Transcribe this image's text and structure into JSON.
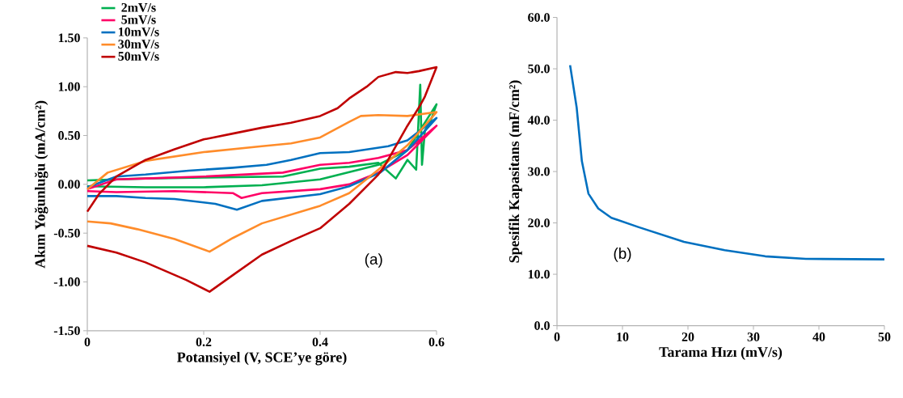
{
  "chart_data": [
    {
      "type": "line",
      "xlabel": "Potansiyel (V, SCE’ye göre)",
      "ylabel": "Akım Yoğunluğu (mA/cm²)",
      "xlim": [
        0,
        0.6
      ],
      "ylim": [
        -1.5,
        1.5
      ],
      "xticks": [
        0,
        0.2,
        0.4,
        0.6
      ],
      "yticks": [
        {
          "value": -1.5,
          "label": "-1.50"
        },
        {
          "value": -1.0,
          "label": "-1.00"
        },
        {
          "value": -0.5,
          "label": "-0.50"
        },
        {
          "value": 0,
          "label": "0.00"
        },
        {
          "value": 0.5,
          "label": "0.50"
        },
        {
          "value": 1.0,
          "label": "1.00"
        },
        {
          "value": 1.5,
          "label": "1.50"
        }
      ],
      "legend": "top left",
      "annotations": [
        "(a)"
      ],
      "series": [
        {
          "name": "2mV/s",
          "color": "#00b050",
          "x": [
            0,
            0.05,
            0.1,
            0.2,
            0.336,
            0.4,
            0.45,
            0.5,
            0.53,
            0.55,
            0.565,
            0.572,
            0.575,
            0.58,
            0.59,
            0.6,
            0.55,
            0.5,
            0.4,
            0.3,
            0.2,
            0.1,
            0
          ],
          "values": [
            0.04,
            0.05,
            0.06,
            0.07,
            0.08,
            0.16,
            0.18,
            0.22,
            0.06,
            0.25,
            0.15,
            1.02,
            0.2,
            0.55,
            0.65,
            0.82,
            0.35,
            0.2,
            0.05,
            -0.01,
            -0.03,
            -0.03,
            -0.02
          ]
        },
        {
          "name": "5mV/s",
          "color": "#ff0066",
          "x": [
            0,
            0.05,
            0.1,
            0.2,
            0.336,
            0.4,
            0.45,
            0.5,
            0.55,
            0.6,
            0.55,
            0.5,
            0.45,
            0.4,
            0.3,
            0.265,
            0.25,
            0.15,
            0.05,
            0
          ],
          "values": [
            -0.05,
            0.05,
            0.06,
            0.08,
            0.12,
            0.2,
            0.22,
            0.27,
            0.35,
            0.6,
            0.3,
            0.12,
            0.0,
            -0.05,
            -0.09,
            -0.14,
            -0.09,
            -0.07,
            -0.08,
            -0.07
          ]
        },
        {
          "name": "10mV/s",
          "color": "#0070c0",
          "x": [
            0,
            0.05,
            0.1,
            0.174,
            0.25,
            0.308,
            0.35,
            0.4,
            0.45,
            0.517,
            0.55,
            0.6,
            0.55,
            0.503,
            0.45,
            0.4,
            0.3,
            0.257,
            0.22,
            0.15,
            0.1,
            0.05,
            0
          ],
          "values": [
            -0.03,
            0.08,
            0.1,
            0.14,
            0.17,
            0.2,
            0.25,
            0.32,
            0.33,
            0.39,
            0.45,
            0.68,
            0.35,
            0.12,
            -0.02,
            -0.1,
            -0.17,
            -0.26,
            -0.2,
            -0.15,
            -0.14,
            -0.12,
            -0.12
          ]
        },
        {
          "name": "30mV/s",
          "color": "#ff8c2a",
          "x": [
            0,
            0.035,
            0.1,
            0.2,
            0.3,
            0.35,
            0.4,
            0.45,
            0.47,
            0.5,
            0.55,
            0.6,
            0.55,
            0.5,
            0.45,
            0.4,
            0.3,
            0.25,
            0.21,
            0.15,
            0.086,
            0.04,
            0
          ],
          "values": [
            -0.05,
            0.12,
            0.24,
            0.33,
            0.39,
            0.42,
            0.48,
            0.64,
            0.7,
            0.71,
            0.7,
            0.74,
            0.4,
            0.15,
            -0.09,
            -0.22,
            -0.4,
            -0.55,
            -0.69,
            -0.56,
            -0.46,
            -0.4,
            -0.38
          ]
        },
        {
          "name": "50mV/s",
          "color": "#c00000",
          "x": [
            0,
            0.02,
            0.05,
            0.1,
            0.15,
            0.2,
            0.25,
            0.3,
            0.35,
            0.4,
            0.43,
            0.45,
            0.48,
            0.5,
            0.53,
            0.55,
            0.57,
            0.6,
            0.58,
            0.57,
            0.55,
            0.51,
            0.5,
            0.45,
            0.4,
            0.35,
            0.3,
            0.25,
            0.21,
            0.17,
            0.1,
            0.05,
            0
          ],
          "values": [
            -0.28,
            -0.1,
            0.08,
            0.25,
            0.36,
            0.46,
            0.52,
            0.58,
            0.63,
            0.7,
            0.78,
            0.88,
            1.0,
            1.1,
            1.15,
            1.14,
            1.16,
            1.2,
            0.9,
            0.79,
            0.6,
            0.18,
            0.1,
            -0.2,
            -0.45,
            -0.58,
            -0.72,
            -0.93,
            -1.1,
            -0.98,
            -0.8,
            -0.7,
            -0.63
          ]
        }
      ]
    },
    {
      "type": "line",
      "xlabel": "Tarama Hızı (mV/s)",
      "ylabel": "Spesifik Kapasitans (mF/cm²)",
      "xlim": [
        0,
        50
      ],
      "ylim": [
        0,
        60
      ],
      "xticks": [
        0,
        10,
        20,
        30,
        40,
        50
      ],
      "yticks": [
        {
          "value": 0,
          "label": "0.0"
        },
        {
          "value": 10,
          "label": "10.0"
        },
        {
          "value": 20,
          "label": "20.0"
        },
        {
          "value": 30,
          "label": "30.0"
        },
        {
          "value": 40,
          "label": "40.0"
        },
        {
          "value": 50,
          "label": "50.0"
        },
        {
          "value": 60,
          "label": "60.0"
        }
      ],
      "annotations": [
        "(b)"
      ],
      "series": [
        {
          "color": "#0070c0",
          "x": [
            2,
            3,
            3.8,
            4.8,
            6.3,
            8.3,
            12.4,
            19.4,
            25.6,
            31.8,
            38,
            50
          ],
          "values": [
            50.7,
            42.5,
            32.0,
            25.7,
            22.8,
            21.0,
            19.2,
            16.3,
            14.7,
            13.5,
            13.0,
            12.9
          ]
        }
      ]
    }
  ]
}
